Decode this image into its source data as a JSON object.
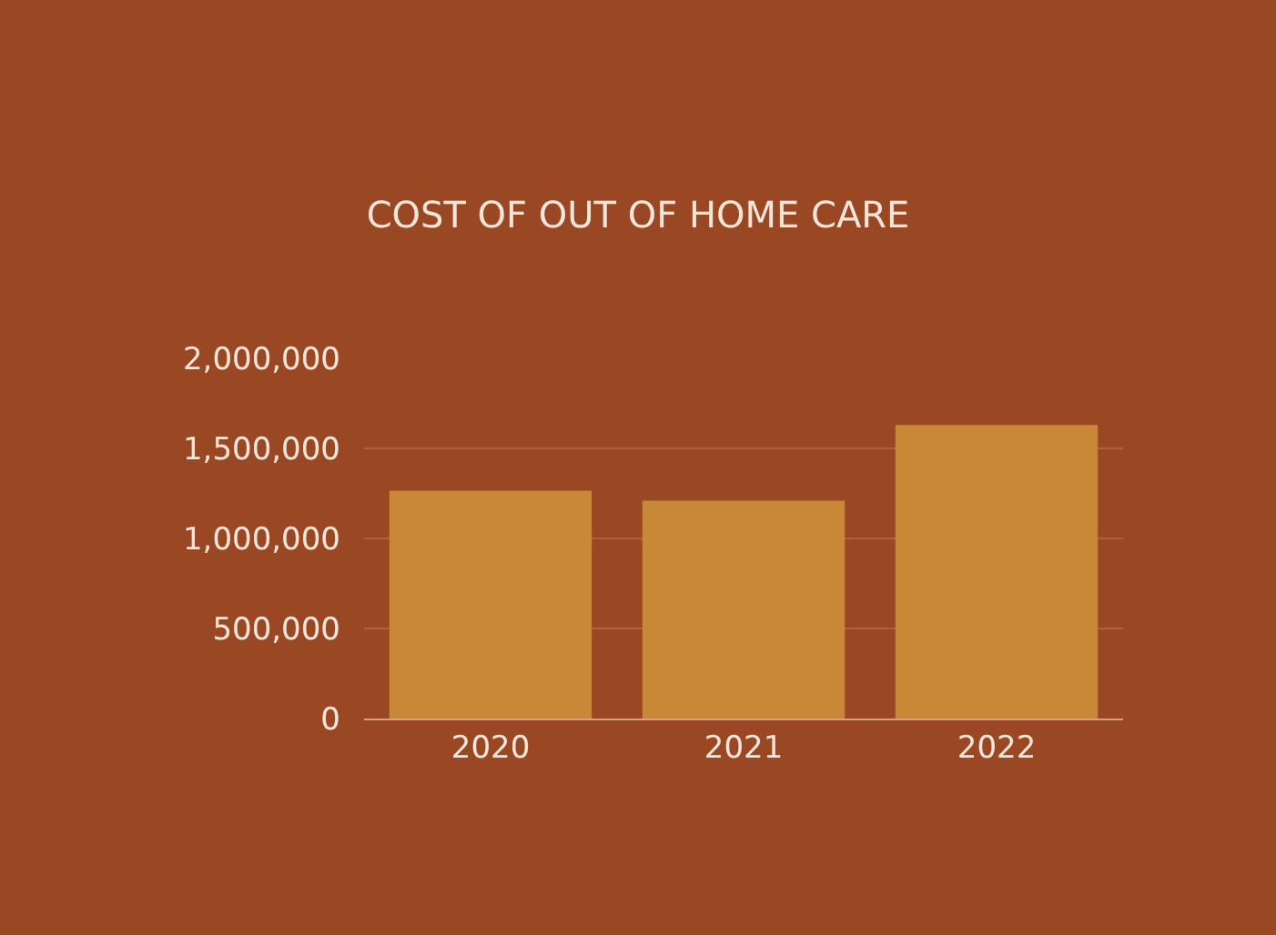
{
  "chart_data": {
    "type": "bar",
    "title": "COST OF OUT OF HOME CARE",
    "categories": [
      "2020",
      "2021",
      "2022"
    ],
    "values": [
      1265000,
      1210000,
      1630000
    ],
    "color": "#c88837",
    "ylim": [
      0,
      2000000
    ],
    "yticks": [
      {
        "value": 0,
        "label": "0"
      },
      {
        "value": 500000,
        "label": "500,000"
      },
      {
        "value": 1000000,
        "label": "1,000,000"
      },
      {
        "value": 1500000,
        "label": "1,500,000"
      },
      {
        "value": 2000000,
        "label": "2,000,000"
      }
    ],
    "grid": "y"
  }
}
